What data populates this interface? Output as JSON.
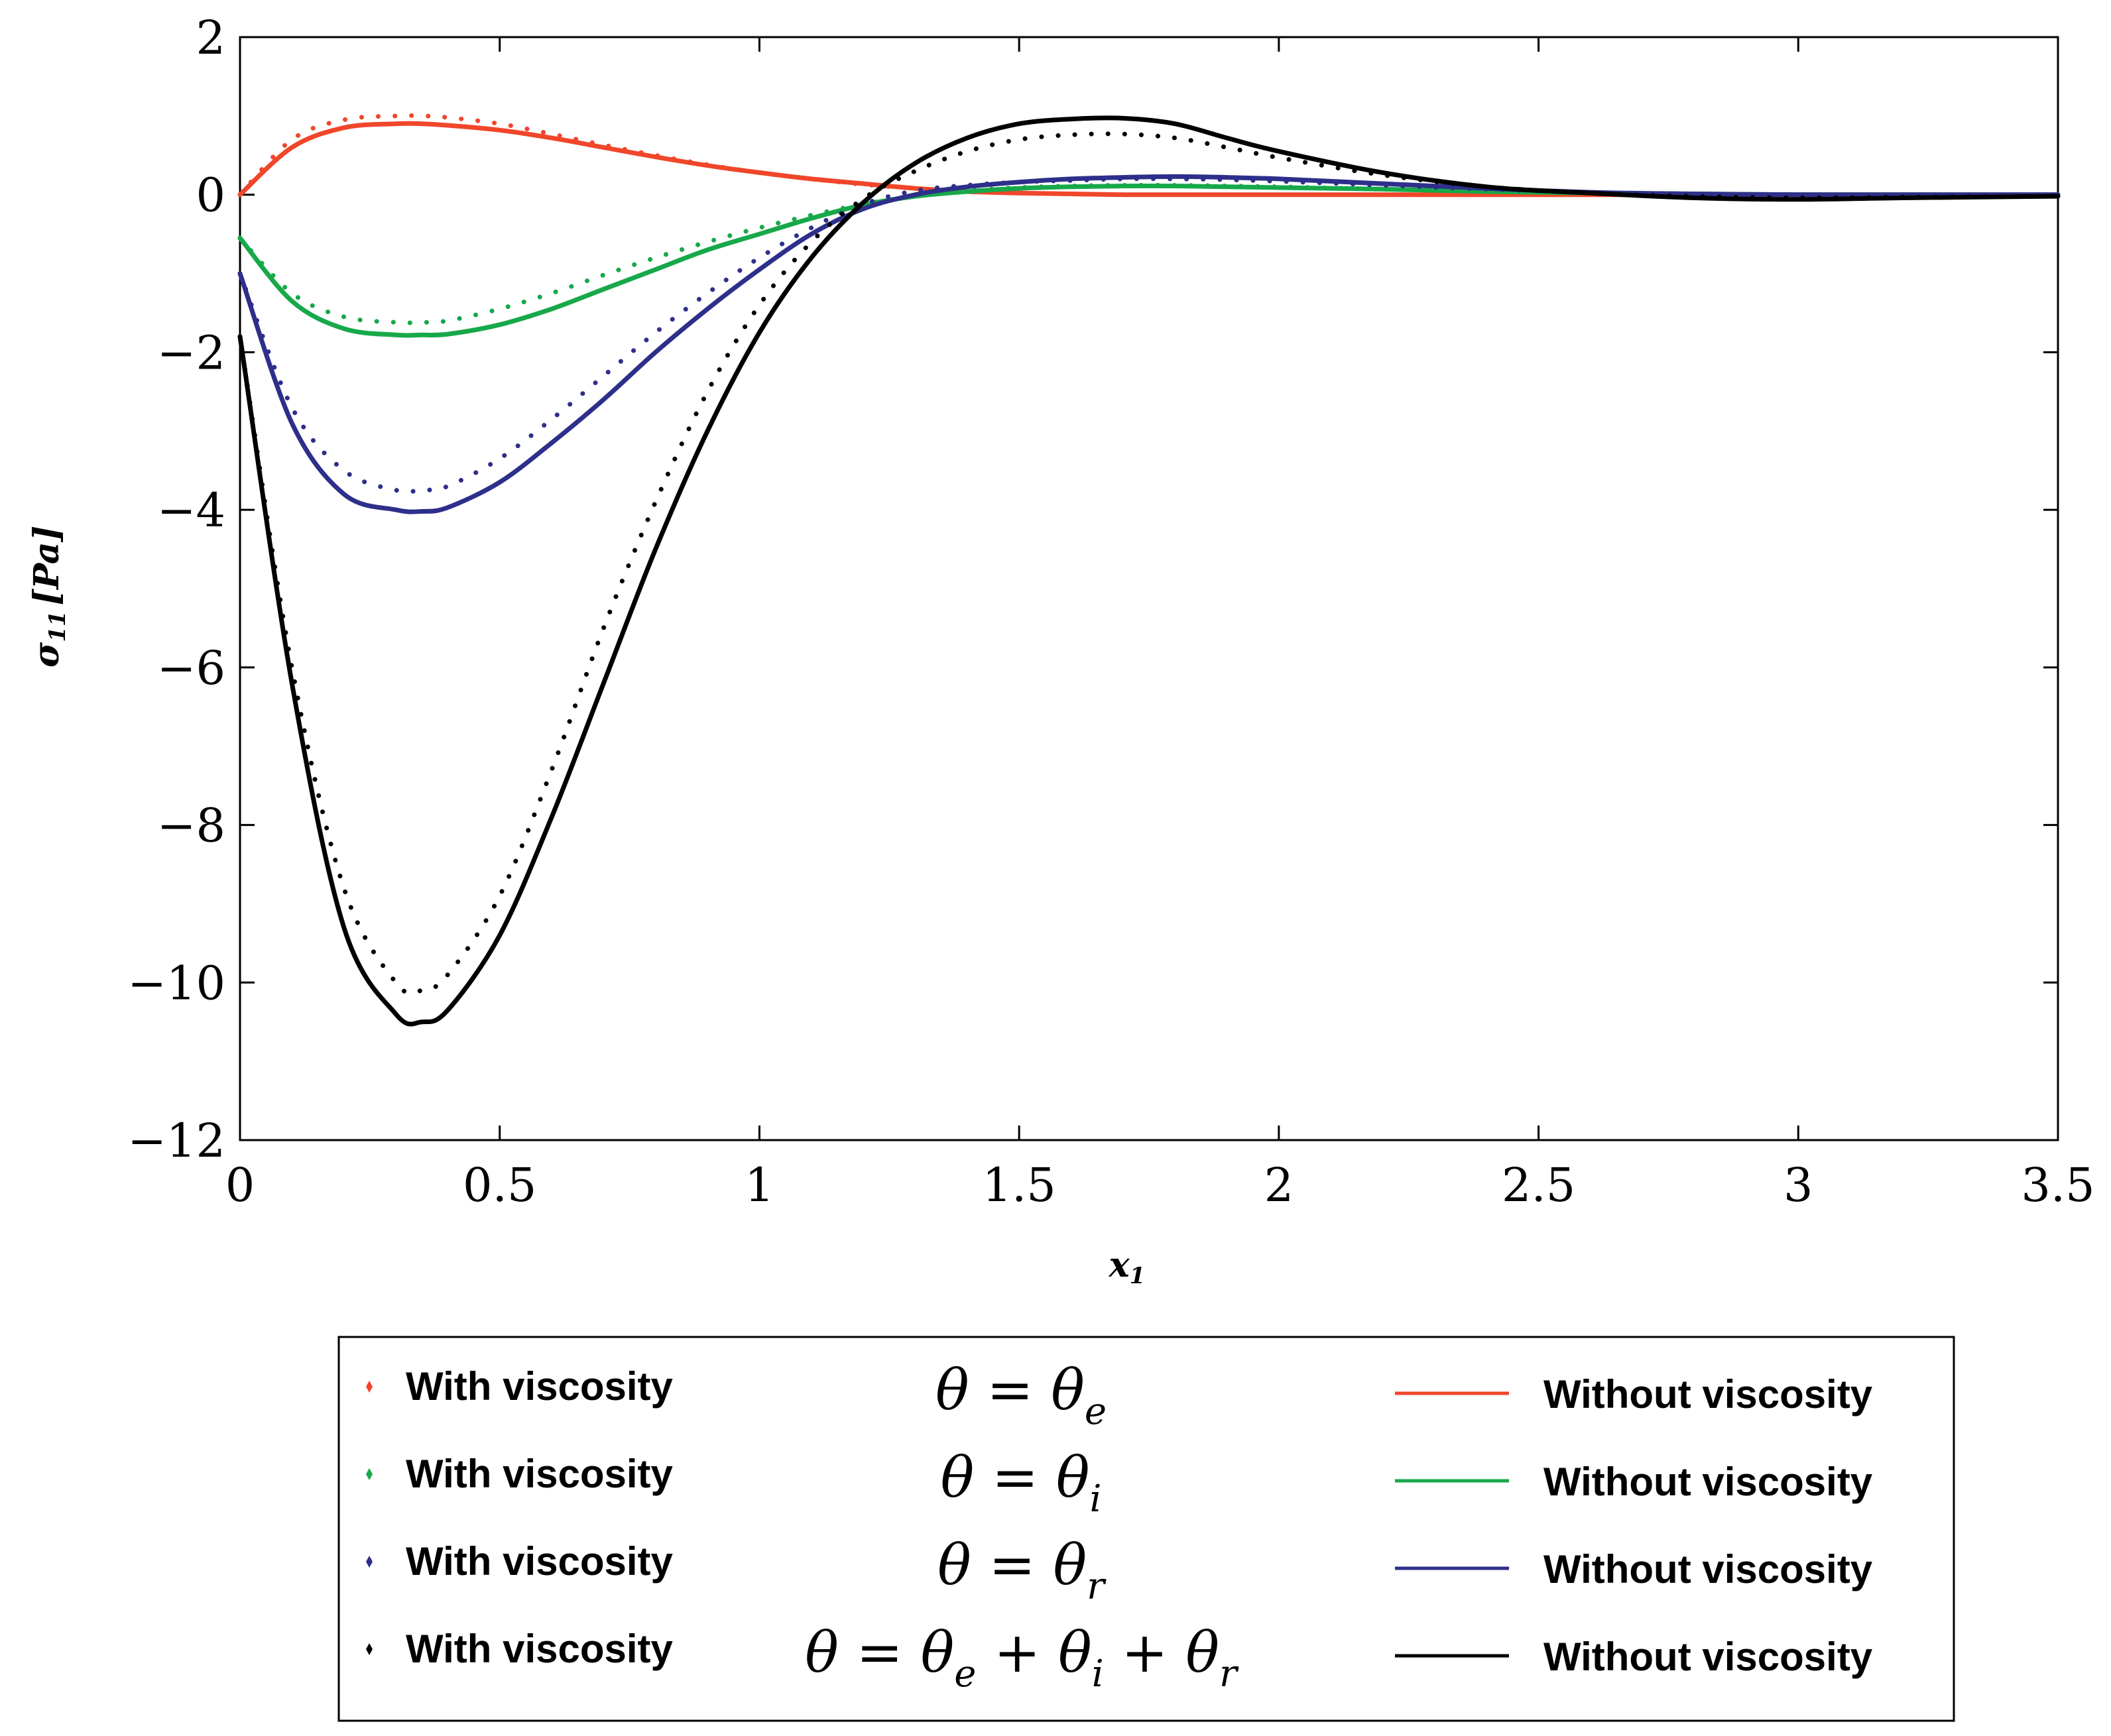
{
  "chart_data": {
    "type": "line",
    "title": "",
    "xlabel": "x",
    "xlabel_subscript": "1",
    "ylabel": "σ",
    "ylabel_subscript": "11",
    "ylabel_unit": "[Pa]",
    "xlim": [
      0,
      3.5
    ],
    "ylim": [
      -12,
      2
    ],
    "x_ticks": [
      0,
      0.5,
      1,
      1.5,
      2,
      2.5,
      3,
      3.5
    ],
    "x_tick_labels": [
      "0",
      "0.5",
      "1",
      "1.5",
      "2",
      "2.5",
      "3",
      "3.5"
    ],
    "y_ticks": [
      -12,
      -10,
      -8,
      -6,
      -4,
      -2,
      0,
      2
    ],
    "y_tick_labels": [
      "−12",
      "−10",
      "−8",
      "−6",
      "−4",
      "−2",
      "0",
      "2"
    ],
    "grid": false,
    "legend_position": "bottom",
    "x": [
      0,
      0.1,
      0.2,
      0.3,
      0.35,
      0.4,
      0.5,
      0.6,
      0.7,
      0.8,
      0.9,
      1.0,
      1.1,
      1.2,
      1.3,
      1.4,
      1.5,
      1.6,
      1.7,
      1.8,
      1.9,
      2.0,
      2.2,
      2.4,
      2.6,
      2.8,
      3.0,
      3.2,
      3.5
    ],
    "series": [
      {
        "name": "θ = θe — With viscosity",
        "group": "theta_e",
        "kind": "dotted",
        "color": "#f0462a",
        "values": [
          0,
          0.7,
          0.95,
          1.0,
          1.0,
          0.98,
          0.9,
          0.77,
          0.63,
          0.5,
          0.38,
          0.28,
          0.2,
          0.13,
          0.08,
          0.04,
          0.02,
          0.01,
          0,
          0,
          0,
          0,
          0,
          0,
          0,
          0,
          0,
          0,
          0
        ]
      },
      {
        "name": "θ = θe — Without viscosity",
        "group": "theta_e",
        "kind": "solid",
        "color": "#f0462a",
        "values": [
          0,
          0.6,
          0.85,
          0.9,
          0.9,
          0.88,
          0.82,
          0.72,
          0.6,
          0.48,
          0.37,
          0.28,
          0.2,
          0.14,
          0.08,
          0.04,
          0.02,
          0.01,
          0,
          0,
          0,
          0,
          0,
          0,
          0,
          0,
          0,
          0,
          0
        ]
      },
      {
        "name": "θ = θi — With viscosity",
        "group": "theta_i",
        "kind": "dotted",
        "color": "#17a84a",
        "values": [
          -0.55,
          -1.25,
          -1.55,
          -1.62,
          -1.62,
          -1.6,
          -1.45,
          -1.25,
          -1.02,
          -0.8,
          -0.6,
          -0.42,
          -0.26,
          -0.12,
          -0.02,
          0.05,
          0.09,
          0.11,
          0.12,
          0.12,
          0.11,
          0.1,
          0.07,
          0.04,
          0.02,
          0.01,
          0,
          0,
          0
        ]
      },
      {
        "name": "θ = θi — Without viscosity",
        "group": "theta_i",
        "kind": "solid",
        "color": "#17a84a",
        "values": [
          -0.55,
          -1.35,
          -1.7,
          -1.78,
          -1.78,
          -1.77,
          -1.65,
          -1.45,
          -1.2,
          -0.95,
          -0.7,
          -0.5,
          -0.3,
          -0.13,
          -0.02,
          0.04,
          0.08,
          0.1,
          0.11,
          0.11,
          0.1,
          0.09,
          0.07,
          0.04,
          0.02,
          0.01,
          0,
          0,
          0
        ]
      },
      {
        "name": "θ = θr — With viscosity",
        "group": "theta_r",
        "kind": "dotted",
        "color": "#2e2f8a",
        "values": [
          -1.0,
          -2.7,
          -3.5,
          -3.75,
          -3.75,
          -3.7,
          -3.35,
          -2.85,
          -2.3,
          -1.75,
          -1.25,
          -0.8,
          -0.42,
          -0.12,
          0.05,
          0.12,
          0.16,
          0.18,
          0.2,
          0.2,
          0.19,
          0.17,
          0.12,
          0.07,
          0.03,
          0.01,
          0,
          0,
          0
        ]
      },
      {
        "name": "θ = θr — Without viscosity",
        "group": "theta_r",
        "kind": "solid",
        "color": "#2e2f8a",
        "values": [
          -1.0,
          -2.9,
          -3.8,
          -4.0,
          -4.02,
          -3.97,
          -3.65,
          -3.15,
          -2.6,
          -2.0,
          -1.45,
          -0.95,
          -0.5,
          -0.18,
          0.0,
          0.1,
          0.16,
          0.2,
          0.22,
          0.23,
          0.22,
          0.2,
          0.14,
          0.08,
          0.03,
          0.01,
          0,
          0,
          0
        ]
      },
      {
        "name": "θ = θe + θi + θr — With viscosity",
        "group": "theta_sum",
        "kind": "dotted",
        "color": "#000000",
        "values": [
          -1.8,
          -6.0,
          -8.8,
          -10.0,
          -10.1,
          -9.9,
          -8.9,
          -7.3,
          -5.5,
          -3.9,
          -2.5,
          -1.4,
          -0.6,
          -0.05,
          0.3,
          0.55,
          0.7,
          0.76,
          0.77,
          0.72,
          0.6,
          0.47,
          0.25,
          0.1,
          0.02,
          -0.02,
          -0.04,
          -0.03,
          -0.02
        ]
      },
      {
        "name": "θ = θe + θi + θr — Without viscosity",
        "group": "theta_sum",
        "kind": "solid",
        "color": "#000000",
        "values": [
          -1.8,
          -6.2,
          -9.3,
          -10.4,
          -10.5,
          -10.35,
          -9.4,
          -7.9,
          -6.2,
          -4.5,
          -3.0,
          -1.75,
          -0.8,
          -0.1,
          0.4,
          0.72,
          0.9,
          0.96,
          0.97,
          0.9,
          0.72,
          0.55,
          0.28,
          0.1,
          0.02,
          -0.04,
          -0.06,
          -0.04,
          -0.02
        ]
      }
    ],
    "legend": {
      "with_label": "With viscosity",
      "without_label": "Without viscosity",
      "rows": [
        {
          "group": "theta_e",
          "color": "#f0462a",
          "eq_main": "θ = θ",
          "eq_sub": "e"
        },
        {
          "group": "theta_i",
          "color": "#17a84a",
          "eq_main": "θ = θ",
          "eq_sub": "i"
        },
        {
          "group": "theta_r",
          "color": "#2e2f8a",
          "eq_main": "θ = θ",
          "eq_sub": "r"
        },
        {
          "group": "theta_sum",
          "color": "#000000",
          "eq_main": "θ = θ",
          "eq_sub": "e",
          "eq_p2": " +  θ",
          "eq_sub2": "i",
          "eq_p3": " + θ",
          "eq_sub3": "r"
        }
      ]
    }
  }
}
